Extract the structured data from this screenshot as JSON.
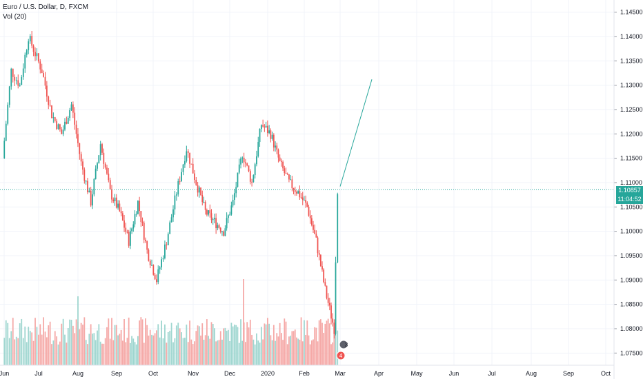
{
  "legend": {
    "title": "Euro / U.S. Dollar, D, FXCM",
    "indicator": "Vol (20)"
  },
  "colors": {
    "up": "#26a69a",
    "down": "#ef5350",
    "grid": "#f0f3fa",
    "axis": "#e0e3eb",
    "price_line": "#26a69a",
    "vol_up": "#9fd6d0",
    "vol_down": "#f5a9a7"
  },
  "price_badge": {
    "price": "1.10857",
    "countdown": "11:04:52"
  },
  "events": [
    {
      "label": "3"
    },
    {
      "label": "4"
    }
  ],
  "chart_data": {
    "type": "candlestick",
    "x_labels": [
      "Jun",
      "Jul",
      "Aug",
      "Sep",
      "Oct",
      "Nov",
      "Dec",
      "2020",
      "Feb",
      "Mar",
      "Apr",
      "May",
      "Jun",
      "Jul",
      "Aug",
      "Sep",
      "Oct"
    ],
    "y_ticks": [
      "1.14500",
      "1.14000",
      "1.13500",
      "1.13000",
      "1.12500",
      "1.12000",
      "1.11500",
      "1.11000",
      "1.10500",
      "1.10000",
      "1.09500",
      "1.09000",
      "1.08500",
      "1.08000",
      "1.07500"
    ],
    "ylim": [
      1.0725,
      1.1475
    ],
    "last_price": 1.10857,
    "projection": {
      "from": [
        "Mar",
        1.1092
      ],
      "to": [
        "Apr",
        1.1312
      ]
    },
    "close_path": [
      [
        "Jun",
        1.115
      ],
      [
        "Jun",
        1.133
      ],
      [
        "Jun",
        1.13
      ],
      [
        "Jun",
        1.14
      ],
      [
        "Jul",
        1.133
      ],
      [
        "Jul",
        1.124
      ],
      [
        "Jul",
        1.12
      ],
      [
        "Jul",
        1.126
      ],
      [
        "Aug",
        1.114
      ],
      [
        "Aug",
        1.106
      ],
      [
        "Aug",
        1.118
      ],
      [
        "Aug",
        1.108
      ],
      [
        "Sep",
        1.104
      ],
      [
        "Sep",
        1.098
      ],
      [
        "Sep",
        1.106
      ],
      [
        "Sep",
        1.096
      ],
      [
        "Oct",
        1.09
      ],
      [
        "Oct",
        1.098
      ],
      [
        "Oct",
        1.108
      ],
      [
        "Oct",
        1.117
      ],
      [
        "Nov",
        1.11
      ],
      [
        "Nov",
        1.104
      ],
      [
        "Nov",
        1.102
      ],
      [
        "Nov",
        1.1
      ],
      [
        "Dec",
        1.106
      ],
      [
        "Dec",
        1.116
      ],
      [
        "Dec",
        1.11
      ],
      [
        "Dec",
        1.122
      ],
      [
        "2020",
        1.12
      ],
      [
        "2020",
        1.114
      ],
      [
        "2020",
        1.11
      ],
      [
        "2020",
        1.108
      ],
      [
        "Feb",
        1.105
      ],
      [
        "Feb",
        1.098
      ],
      [
        "Feb",
        1.088
      ],
      [
        "Feb",
        1.08
      ],
      [
        "Mar",
        1.1086
      ]
    ],
    "volume": {
      "label": "Vol (20)",
      "spikes": [
        [
          "Aug",
          "high"
        ],
        [
          "Dec",
          "max"
        ]
      ]
    },
    "grid": true,
    "legend": "top-left"
  }
}
